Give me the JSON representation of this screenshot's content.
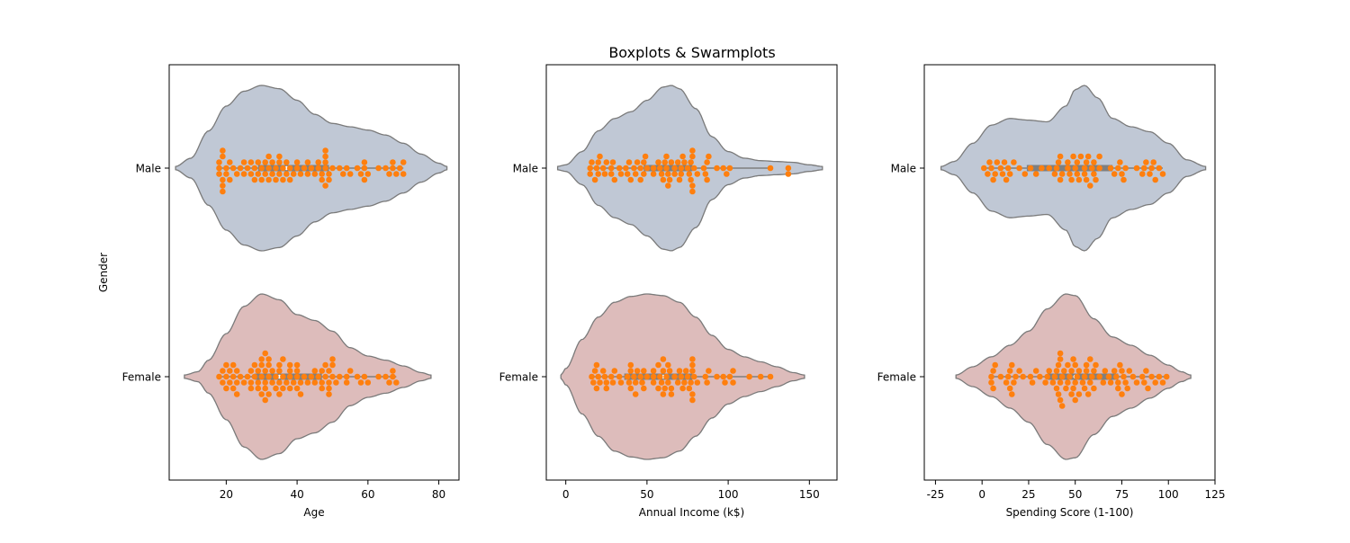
{
  "figure_title": "Boxplots & Swarmplots",
  "colors": {
    "male_violin": "#c0c8d5",
    "female_violin": "#ddbcbb",
    "violin_edge": "#7a7a7a",
    "swarm_points": "#ff7f0e",
    "box_fill": "#7f7f7f"
  },
  "chart_data": [
    {
      "type": "violin",
      "title": "",
      "xlabel": "Age",
      "ylabel": "Gender",
      "categories": [
        "Male",
        "Female"
      ],
      "xlim": [
        3.9,
        85.7
      ],
      "xticks": [
        20,
        40,
        60,
        80
      ],
      "violin_range": [
        [
          5.7,
          82.3
        ],
        [
          8.2,
          77.8
        ]
      ],
      "box": [
        {
          "q1": 29,
          "median": 37,
          "q3": 49,
          "min": 18,
          "max": 70
        },
        {
          "q1": 28,
          "median": 35,
          "q3": 47,
          "min": 18,
          "max": 68
        }
      ],
      "density": [
        [
          [
            5.7,
            0.02
          ],
          [
            10,
            0.12
          ],
          [
            15,
            0.45
          ],
          [
            20,
            0.75
          ],
          [
            25,
            0.93
          ],
          [
            30,
            1.0
          ],
          [
            35,
            0.96
          ],
          [
            40,
            0.82
          ],
          [
            45,
            0.65
          ],
          [
            50,
            0.54
          ],
          [
            55,
            0.5
          ],
          [
            60,
            0.46
          ],
          [
            65,
            0.4
          ],
          [
            70,
            0.3
          ],
          [
            75,
            0.17
          ],
          [
            80,
            0.06
          ],
          [
            82.3,
            0.02
          ]
        ],
        [
          [
            8.2,
            0.02
          ],
          [
            12,
            0.06
          ],
          [
            15,
            0.2
          ],
          [
            20,
            0.52
          ],
          [
            25,
            0.85
          ],
          [
            30,
            1.0
          ],
          [
            35,
            0.93
          ],
          [
            40,
            0.75
          ],
          [
            45,
            0.68
          ],
          [
            50,
            0.55
          ],
          [
            55,
            0.35
          ],
          [
            60,
            0.25
          ],
          [
            65,
            0.2
          ],
          [
            70,
            0.13
          ],
          [
            75,
            0.05
          ],
          [
            77.8,
            0.02
          ]
        ]
      ],
      "points": [
        [
          18,
          18,
          18,
          19,
          19,
          19,
          19,
          19,
          20,
          20,
          21,
          21,
          22,
          23,
          24,
          25,
          25,
          26,
          27,
          27,
          28,
          28,
          29,
          29,
          30,
          30,
          31,
          31,
          32,
          32,
          32,
          33,
          33,
          34,
          34,
          35,
          35,
          35,
          36,
          36,
          37,
          37,
          38,
          38,
          39,
          40,
          40,
          41,
          42,
          43,
          43,
          44,
          45,
          46,
          46,
          47,
          47,
          48,
          48,
          48,
          48,
          48,
          49,
          49,
          50,
          52,
          53,
          54,
          55,
          57,
          58,
          59,
          59,
          59,
          60,
          63,
          65,
          66,
          67,
          67,
          68,
          69,
          70,
          70
        ],
        [
          18,
          19,
          19,
          20,
          20,
          20,
          21,
          21,
          22,
          22,
          22,
          23,
          23,
          23,
          24,
          25,
          26,
          27,
          27,
          27,
          28,
          28,
          29,
          29,
          29,
          30,
          30,
          30,
          30,
          31,
          31,
          31,
          31,
          31,
          32,
          32,
          32,
          32,
          33,
          33,
          34,
          34,
          35,
          35,
          35,
          35,
          36,
          36,
          36,
          37,
          38,
          38,
          38,
          38,
          39,
          40,
          40,
          40,
          40,
          41,
          41,
          42,
          43,
          44,
          45,
          45,
          46,
          47,
          47,
          47,
          48,
          48,
          49,
          49,
          49,
          49,
          50,
          50,
          50,
          51,
          52,
          54,
          54,
          55,
          57,
          58,
          59,
          60,
          63,
          65,
          66,
          67,
          67,
          68
        ]
      ]
    },
    {
      "type": "violin",
      "title": "",
      "xlabel": "Annual Income (k$)",
      "ylabel": "",
      "categories": [
        "Male",
        "Female"
      ],
      "xlim": [
        -12,
        167
      ],
      "xticks": [
        0,
        50,
        100,
        150
      ],
      "violin_range": [
        [
          -5,
          158
        ],
        [
          -3,
          147
        ]
      ],
      "box": [
        {
          "q1": 48,
          "median": 62,
          "q3": 78,
          "min": 15,
          "max": 126
        },
        {
          "q1": 36,
          "median": 60,
          "q3": 78,
          "min": 16,
          "max": 126
        }
      ],
      "density": [
        [
          [
            -5,
            0.02
          ],
          [
            0,
            0.04
          ],
          [
            10,
            0.2
          ],
          [
            20,
            0.45
          ],
          [
            30,
            0.6
          ],
          [
            40,
            0.68
          ],
          [
            50,
            0.82
          ],
          [
            60,
            0.98
          ],
          [
            65,
            1.0
          ],
          [
            70,
            0.96
          ],
          [
            80,
            0.72
          ],
          [
            90,
            0.38
          ],
          [
            100,
            0.2
          ],
          [
            110,
            0.12
          ],
          [
            120,
            0.09
          ],
          [
            130,
            0.08
          ],
          [
            140,
            0.07
          ],
          [
            150,
            0.04
          ],
          [
            158,
            0.02
          ]
        ],
        [
          [
            -3,
            0.02
          ],
          [
            0,
            0.1
          ],
          [
            10,
            0.45
          ],
          [
            20,
            0.72
          ],
          [
            30,
            0.9
          ],
          [
            40,
            0.97
          ],
          [
            50,
            1.0
          ],
          [
            60,
            0.98
          ],
          [
            70,
            0.9
          ],
          [
            80,
            0.72
          ],
          [
            90,
            0.5
          ],
          [
            100,
            0.33
          ],
          [
            110,
            0.24
          ],
          [
            120,
            0.18
          ],
          [
            130,
            0.12
          ],
          [
            140,
            0.05
          ],
          [
            147,
            0.02
          ]
        ]
      ],
      "points": [
        [
          15,
          15,
          16,
          18,
          19,
          20,
          20,
          21,
          23,
          24,
          25,
          28,
          28,
          29,
          30,
          33,
          34,
          37,
          38,
          39,
          40,
          42,
          43,
          44,
          46,
          46,
          48,
          48,
          49,
          50,
          54,
          54,
          57,
          58,
          59,
          60,
          61,
          62,
          62,
          63,
          63,
          64,
          65,
          67,
          67,
          69,
          70,
          71,
          71,
          72,
          73,
          75,
          76,
          77,
          77,
          78,
          78,
          78,
          78,
          79,
          81,
          85,
          86,
          87,
          87,
          88,
          93,
          97,
          99,
          101,
          126,
          137,
          137
        ],
        [
          16,
          17,
          18,
          19,
          19,
          20,
          21,
          23,
          24,
          25,
          25,
          28,
          29,
          30,
          33,
          34,
          38,
          39,
          40,
          40,
          40,
          42,
          43,
          43,
          44,
          46,
          47,
          48,
          48,
          50,
          54,
          54,
          54,
          57,
          57,
          58,
          59,
          60,
          60,
          60,
          61,
          62,
          63,
          63,
          64,
          65,
          65,
          67,
          69,
          70,
          71,
          72,
          73,
          74,
          75,
          76,
          77,
          78,
          78,
          78,
          78,
          78,
          79,
          81,
          86,
          87,
          88,
          93,
          97,
          98,
          101,
          103,
          103,
          113,
          120,
          126
        ]
      ]
    },
    {
      "type": "violin",
      "title": "",
      "xlabel": "Spending Score (1-100)",
      "ylabel": "",
      "categories": [
        "Male",
        "Female"
      ],
      "xlim": [
        -31,
        125
      ],
      "xticks": [
        -25,
        0,
        25,
        50,
        75,
        100,
        125
      ],
      "violin_range": [
        [
          -22,
          120
        ],
        [
          -14,
          112
        ]
      ],
      "box": [
        {
          "q1": 24,
          "median": 50,
          "q3": 70,
          "min": 1,
          "max": 97
        },
        {
          "q1": 35,
          "median": 50,
          "q3": 73,
          "min": 5,
          "max": 99
        }
      ],
      "density": [
        [
          [
            -22,
            0.02
          ],
          [
            -15,
            0.08
          ],
          [
            -5,
            0.3
          ],
          [
            5,
            0.52
          ],
          [
            15,
            0.6
          ],
          [
            25,
            0.58
          ],
          [
            35,
            0.56
          ],
          [
            45,
            0.75
          ],
          [
            50,
            0.95
          ],
          [
            55,
            1.0
          ],
          [
            62,
            0.85
          ],
          [
            70,
            0.6
          ],
          [
            80,
            0.5
          ],
          [
            90,
            0.44
          ],
          [
            100,
            0.3
          ],
          [
            110,
            0.1
          ],
          [
            120,
            0.02
          ]
        ],
        [
          [
            -14,
            0.02
          ],
          [
            -5,
            0.12
          ],
          [
            5,
            0.24
          ],
          [
            15,
            0.38
          ],
          [
            25,
            0.55
          ],
          [
            35,
            0.82
          ],
          [
            45,
            1.0
          ],
          [
            50,
            0.98
          ],
          [
            60,
            0.7
          ],
          [
            70,
            0.48
          ],
          [
            80,
            0.38
          ],
          [
            90,
            0.26
          ],
          [
            100,
            0.14
          ],
          [
            107,
            0.06
          ],
          [
            112,
            0.02
          ]
        ]
      ],
      "points": [
        [
          1,
          3,
          4,
          5,
          6,
          7,
          8,
          10,
          11,
          12,
          13,
          14,
          15,
          17,
          20,
          23,
          26,
          29,
          32,
          36,
          39,
          40,
          41,
          42,
          42,
          43,
          46,
          46,
          47,
          48,
          49,
          50,
          51,
          51,
          52,
          53,
          55,
          55,
          56,
          56,
          57,
          58,
          59,
          60,
          60,
          61,
          63,
          63,
          69,
          71,
          73,
          74,
          75,
          76,
          77,
          83,
          86,
          87,
          88,
          90,
          91,
          92,
          93,
          95,
          97
        ],
        [
          5,
          5,
          6,
          6,
          7,
          10,
          13,
          14,
          15,
          15,
          16,
          16,
          17,
          18,
          20,
          22,
          26,
          27,
          29,
          31,
          34,
          35,
          36,
          38,
          39,
          40,
          40,
          41,
          41,
          42,
          42,
          42,
          42,
          43,
          43,
          44,
          45,
          46,
          46,
          47,
          48,
          48,
          49,
          49,
          50,
          50,
          50,
          51,
          52,
          52,
          54,
          55,
          55,
          56,
          56,
          57,
          58,
          58,
          59,
          60,
          60,
          61,
          63,
          65,
          66,
          68,
          69,
          71,
          72,
          73,
          73,
          74,
          75,
          75,
          76,
          77,
          78,
          79,
          81,
          83,
          86,
          87,
          88,
          89,
          91,
          93,
          95,
          97,
          99
        ]
      ]
    }
  ]
}
